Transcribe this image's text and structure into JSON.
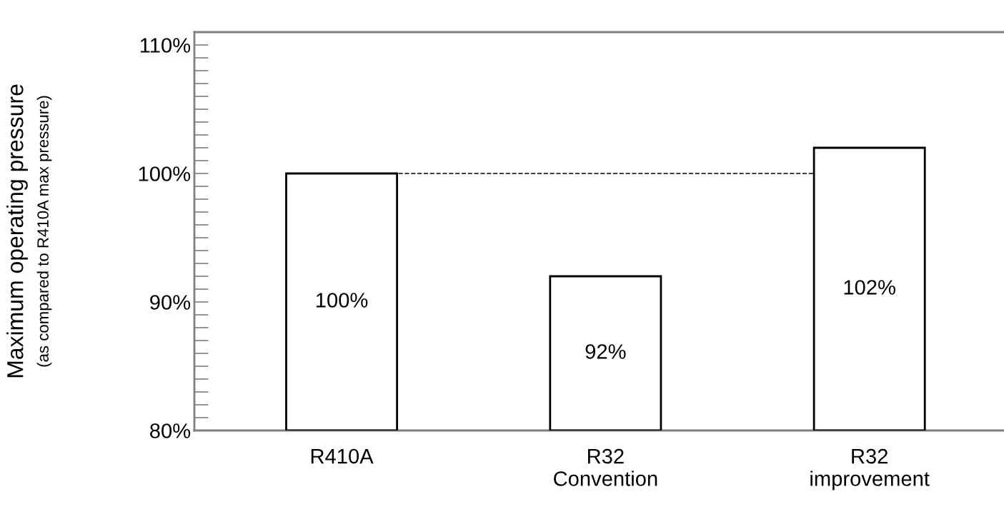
{
  "chart_data": {
    "type": "bar",
    "ylabel": "Maximum operating pressure",
    "annotations": [
      "(as compared to R410A max pressure)"
    ],
    "categories": [
      "R410A",
      "R32\nConvention",
      "R32\nimprovement"
    ],
    "values": [
      100,
      92,
      102
    ],
    "color": "#ffffff",
    "value_labels": [
      "100%",
      "92%",
      "102%"
    ],
    "ylim": [
      80,
      111
    ],
    "yticks": [
      {
        "value": 80,
        "label": "80%"
      },
      {
        "value": 90,
        "label": "90%"
      },
      {
        "value": 100,
        "label": "100%"
      },
      {
        "value": 110,
        "label": "110%"
      }
    ],
    "ref_lines": [
      {
        "axis": "y",
        "value": 100,
        "line_style": "dashed",
        "color": "#000000"
      }
    ],
    "grid": false,
    "legend": false
  }
}
